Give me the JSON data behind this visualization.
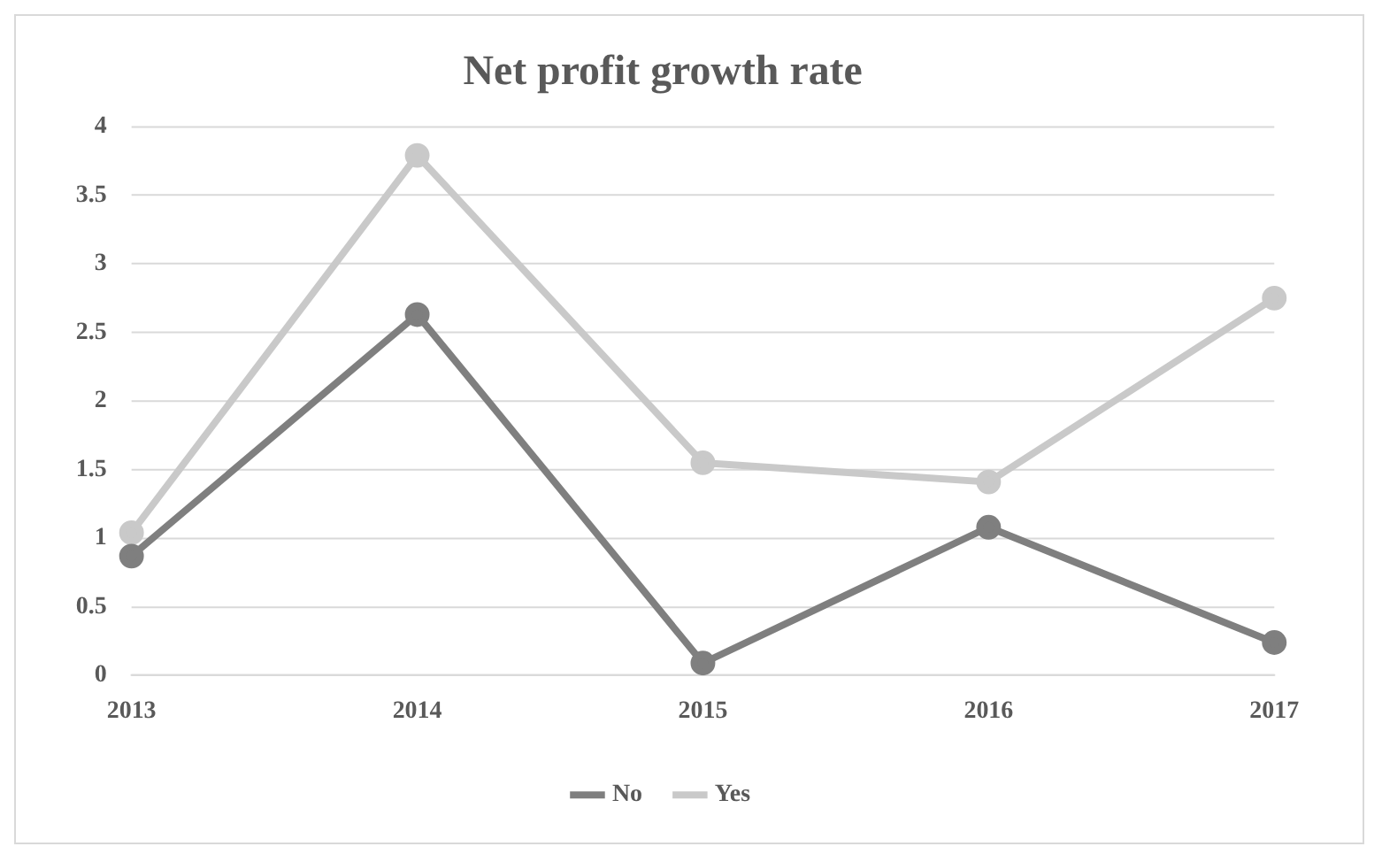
{
  "chart_data": {
    "type": "line",
    "title": "Net profit growth rate",
    "categories": [
      "2013",
      "2014",
      "2015",
      "2016",
      "2017"
    ],
    "series": [
      {
        "name": "No",
        "color": "#7f7f7f",
        "values": [
          0.87,
          2.63,
          0.09,
          1.08,
          0.24
        ]
      },
      {
        "name": "Yes",
        "color": "#c9c9c9",
        "values": [
          1.04,
          3.79,
          1.55,
          1.41,
          2.75
        ]
      }
    ],
    "ylim": [
      0,
      4
    ],
    "yticks": [
      0,
      0.5,
      1,
      1.5,
      2,
      2.5,
      3,
      3.5,
      4
    ],
    "grid": "y",
    "legend": "bottom",
    "marker": "circle",
    "line_style": "solid"
  }
}
